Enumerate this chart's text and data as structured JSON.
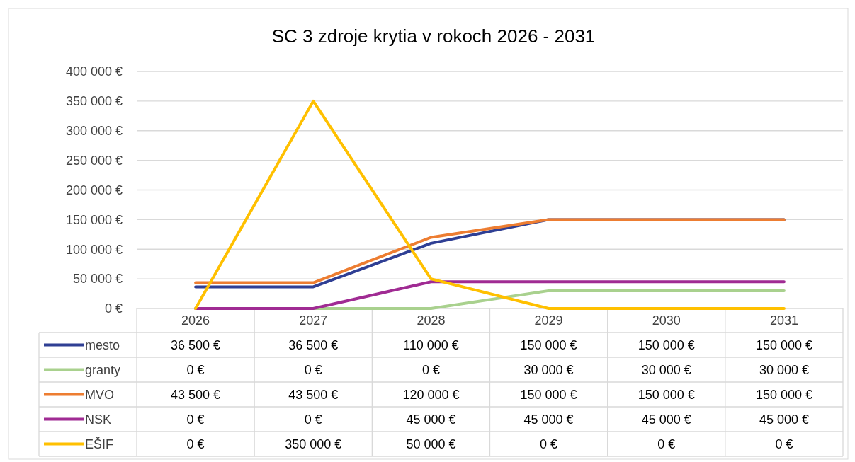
{
  "chart_data": {
    "type": "line",
    "title": "SC 3 zdroje krytia v rokoch 2026 - 2031",
    "categories": [
      "2026",
      "2027",
      "2028",
      "2029",
      "2030",
      "2031"
    ],
    "ylim": [
      0,
      400000
    ],
    "yticks": [
      {
        "value": 0,
        "label": "0 €"
      },
      {
        "value": 50000,
        "label": "50 000 €"
      },
      {
        "value": 100000,
        "label": "100 000 €"
      },
      {
        "value": 150000,
        "label": "150 000 €"
      },
      {
        "value": 200000,
        "label": "200 000 €"
      },
      {
        "value": 250000,
        "label": "250 000 €"
      },
      {
        "value": 300000,
        "label": "300 000 €"
      },
      {
        "value": 350000,
        "label": "350 000 €"
      },
      {
        "value": 400000,
        "label": "400 000 €"
      }
    ],
    "grid": "y",
    "legend": "bottom",
    "line_style": "solid",
    "series": [
      {
        "name": "mesto",
        "color": "#2f3f94",
        "values": [
          36500,
          36500,
          110000,
          150000,
          150000,
          150000
        ],
        "value_labels": [
          "36 500 €",
          "36 500 €",
          "110 000 €",
          "150 000 €",
          "150 000 €",
          "150 000 €"
        ]
      },
      {
        "name": "granty",
        "color": "#a9d18e",
        "values": [
          0,
          0,
          0,
          30000,
          30000,
          30000
        ],
        "value_labels": [
          "0 €",
          "0 €",
          "0 €",
          "30 000 €",
          "30 000 €",
          "30 000 €"
        ]
      },
      {
        "name": "MVO",
        "color": "#ed7d31",
        "values": [
          43500,
          43500,
          120000,
          150000,
          150000,
          150000
        ],
        "value_labels": [
          "43 500 €",
          "43 500 €",
          "120 000 €",
          "150 000 €",
          "150 000 €",
          "150 000 €"
        ]
      },
      {
        "name": "NSK",
        "color": "#a02b93",
        "values": [
          0,
          0,
          45000,
          45000,
          45000,
          45000
        ],
        "value_labels": [
          "0 €",
          "0 €",
          "45 000 €",
          "45 000 €",
          "45 000 €",
          "45 000 €"
        ]
      },
      {
        "name": "EŠIF",
        "color": "#ffc000",
        "values": [
          0,
          350000,
          50000,
          0,
          0,
          0
        ],
        "value_labels": [
          "0 €",
          "350 000 €",
          "50 000 €",
          "0 €",
          "0 €",
          "0 €"
        ]
      }
    ]
  }
}
